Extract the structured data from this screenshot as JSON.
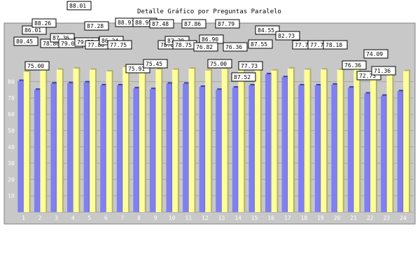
{
  "chart_data": {
    "type": "bar",
    "title": "Detalle Gráfico por Preguntas Paralelo",
    "xlabel": "",
    "ylabel": "",
    "categories": [
      "1",
      "2",
      "3",
      "4",
      "5",
      "6",
      "7",
      "8",
      "9",
      "10",
      "11",
      "12",
      "13",
      "14",
      "15",
      "16",
      "17",
      "18",
      "19",
      "20",
      "21",
      "22",
      "23",
      "24"
    ],
    "series": [
      {
        "values": [
          80.45,
          75.0,
          78.86,
          79.09,
          79.55,
          77.8,
          77.75,
          75.91,
          75.45,
          78.8,
          78.75,
          76.82,
          75.0,
          76.36,
          77.73,
          84.55,
          82.73,
          77.73,
          77.73,
          78.18,
          76.36,
          72.73,
          71.36,
          74.09
        ]
      },
      {
        "values": [
          86.01,
          88.26,
          87.36,
          88.01,
          87.28,
          86.24,
          88.91,
          88.95,
          87.48,
          87.29,
          87.86,
          86.9,
          87.79,
          87.52,
          87.55,
          86.8,
          88.0,
          87.3,
          87.4,
          87.2,
          87.4,
          86.9,
          87.48,
          86.47
        ]
      }
    ],
    "data_labels": [
      "80.45",
      "86.01",
      "88.26",
      "75.00",
      "78.86",
      "87.36",
      "79.09",
      "88.01",
      "79.55",
      "87.28",
      "77.80",
      "86.24",
      "77.75",
      "88.91",
      "88.95",
      "75.91",
      "75.45",
      "87.48",
      "78.80",
      "87.29",
      "78.75",
      "87.86",
      "86.90",
      "76.82",
      "75.00",
      "87.79",
      "76.36",
      "87.52",
      "77.73",
      "87.55",
      "84.55",
      "82.73",
      "77.73",
      "77.73",
      "78.18",
      "76.36",
      "72.73",
      "71.36",
      "74.09"
    ],
    "ylim": [
      0,
      100
    ],
    "yticks": [
      0,
      10,
      20,
      30,
      40,
      50,
      60,
      70,
      80
    ],
    "grid": true,
    "legend": "none",
    "colors": {
      "series1": "#8080f0",
      "series1_shade": "#4040a0",
      "series2": "#ffff99",
      "series2_shade": "#b0b070",
      "plot_bg": "#c8c8c8",
      "grid": "#a8a8a8",
      "tick_text": "#ffffff",
      "label_bg": "#ffffff",
      "label_border": "#000000"
    }
  }
}
